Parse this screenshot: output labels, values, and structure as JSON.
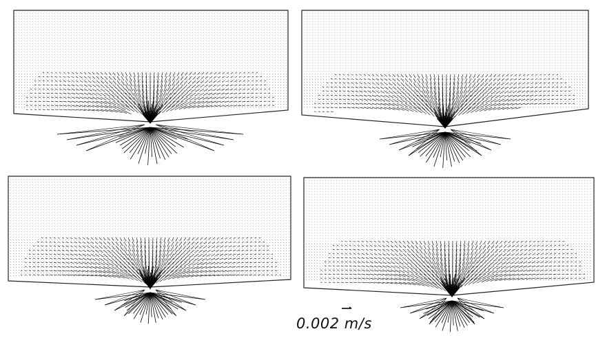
{
  "figure": {
    "panel_count": 4,
    "arrow_color": "#000000",
    "outline_color": "#222222",
    "background": "#ffffff"
  },
  "scale": {
    "label": "0.002 m/s"
  }
}
